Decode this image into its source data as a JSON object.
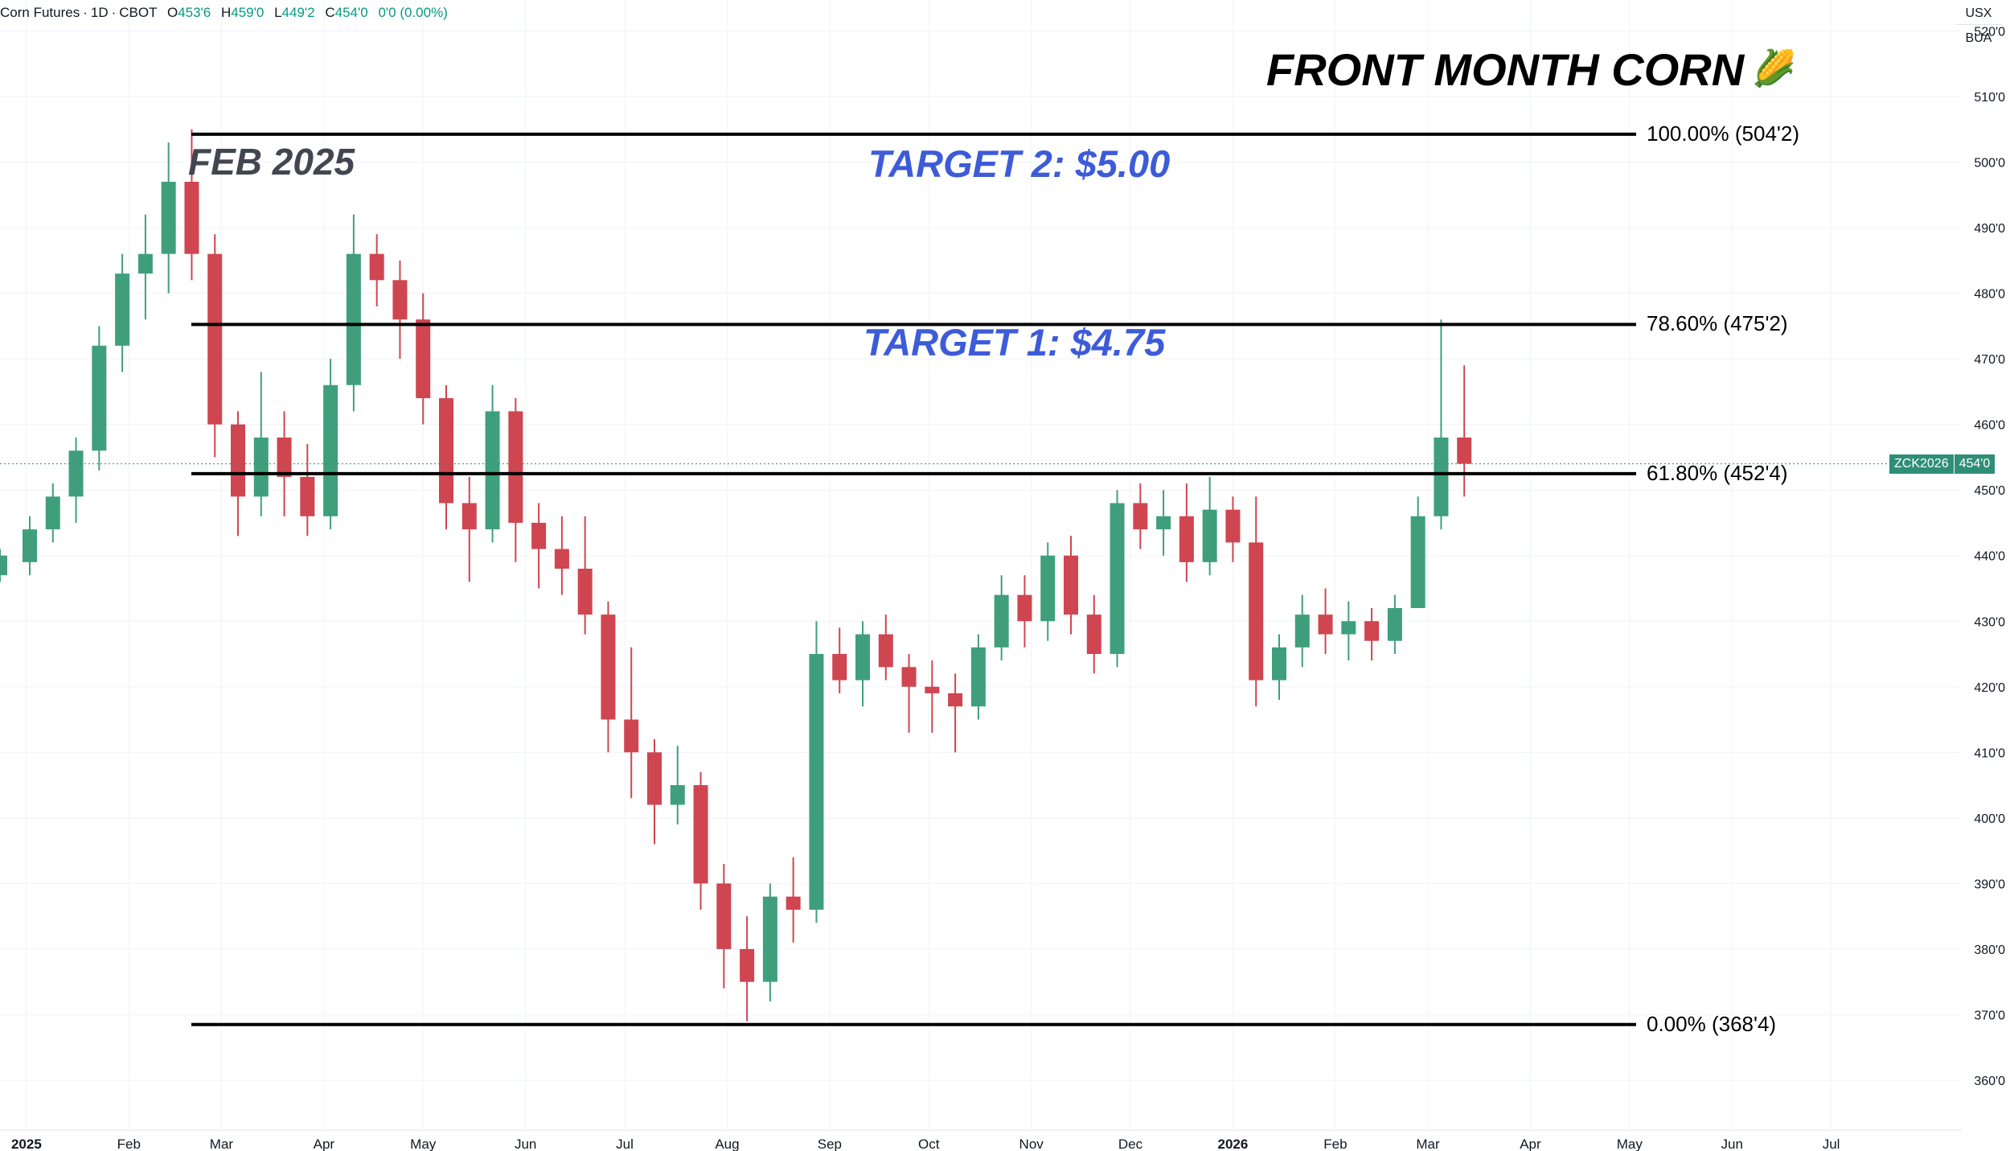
{
  "header": {
    "symbol": "Corn Futures",
    "interval": "1D",
    "exchange": "CBOT",
    "open_label": "O",
    "open": "453'6",
    "high_label": "H",
    "high": "459'0",
    "low_label": "L",
    "low": "449'2",
    "close_label": "C",
    "close": "454'0",
    "change": "0'0 (0.00%)"
  },
  "currency": {
    "unit": "USX",
    "unit2": "BUA"
  },
  "annotations": {
    "title": "FRONT MONTH CORN",
    "title_icon": "corn-icon",
    "feb_label": "FEB 2025",
    "target2": "TARGET 2: $5.00",
    "target1": "TARGET 1: $4.75"
  },
  "fib_levels": [
    {
      "label": "100.00% (504'2)",
      "price": 504.25
    },
    {
      "label": "78.60% (475'2)",
      "price": 475.25
    },
    {
      "label": "61.80% (452'4)",
      "price": 452.5
    },
    {
      "label": "0.00% (368'4)",
      "price": 368.5
    }
  ],
  "last_price_tag": {
    "symbol": "ZCK2026",
    "price": "454'0",
    "value": 454.0
  },
  "colors": {
    "up": "#3f9f7d",
    "down": "#cf4550",
    "grid": "#f0f3fa",
    "accent": "#3d5bd9",
    "price_tag": "#2f8f76"
  },
  "chart_data": {
    "type": "candlestick",
    "ylim": [
      355,
      525
    ],
    "y_ticks": [
      "360'0",
      "370'0",
      "380'0",
      "390'0",
      "400'0",
      "410'0",
      "420'0",
      "430'0",
      "440'0",
      "450'0",
      "460'0",
      "470'0",
      "480'0",
      "490'0",
      "500'0",
      "510'0",
      "520'0"
    ],
    "x_ticks": [
      "2025",
      "Feb",
      "Mar",
      "Apr",
      "May",
      "Jun",
      "Jul",
      "Aug",
      "Sep",
      "Oct",
      "Nov",
      "Dec",
      "2026",
      "Feb",
      "Mar",
      "Apr",
      "May",
      "Jun",
      "Jul"
    ],
    "x_range": [
      "2024-12-24",
      "2026-07-23"
    ],
    "grid": true,
    "series": [
      {
        "values": [
          [
            "2024-12-24",
            437,
            441,
            436,
            440
          ],
          [
            "2025-01-02",
            439,
            446,
            437,
            444
          ],
          [
            "2025-01-09",
            444,
            451,
            442,
            449
          ],
          [
            "2025-01-16",
            449,
            458,
            445,
            456
          ],
          [
            "2025-01-23",
            456,
            475,
            453,
            472
          ],
          [
            "2025-01-30",
            472,
            486,
            468,
            483
          ],
          [
            "2025-02-06",
            483,
            492,
            476,
            486
          ],
          [
            "2025-02-13",
            486,
            503,
            480,
            497
          ],
          [
            "2025-02-20",
            497,
            505,
            482,
            486
          ],
          [
            "2025-02-27",
            486,
            489,
            455,
            460
          ],
          [
            "2025-03-06",
            460,
            462,
            443,
            449
          ],
          [
            "2025-03-13",
            449,
            468,
            446,
            458
          ],
          [
            "2025-03-20",
            458,
            462,
            446,
            452
          ],
          [
            "2025-03-27",
            452,
            457,
            443,
            446
          ],
          [
            "2025-04-03",
            446,
            470,
            444,
            466
          ],
          [
            "2025-04-10",
            466,
            492,
            462,
            486
          ],
          [
            "2025-04-17",
            486,
            489,
            478,
            482
          ],
          [
            "2025-04-24",
            482,
            485,
            470,
            476
          ],
          [
            "2025-05-01",
            476,
            480,
            460,
            464
          ],
          [
            "2025-05-08",
            464,
            466,
            444,
            448
          ],
          [
            "2025-05-15",
            448,
            452,
            436,
            444
          ],
          [
            "2025-05-22",
            444,
            466,
            442,
            462
          ],
          [
            "2025-05-29",
            462,
            464,
            439,
            445
          ],
          [
            "2025-06-05",
            445,
            448,
            435,
            441
          ],
          [
            "2025-06-12",
            441,
            446,
            434,
            438
          ],
          [
            "2025-06-19",
            438,
            446,
            428,
            431
          ],
          [
            "2025-06-26",
            431,
            433,
            410,
            415
          ],
          [
            "2025-07-03",
            415,
            426,
            403,
            410
          ],
          [
            "2025-07-10",
            410,
            412,
            396,
            402
          ],
          [
            "2025-07-17",
            402,
            411,
            399,
            405
          ],
          [
            "2025-07-24",
            405,
            407,
            386,
            390
          ],
          [
            "2025-07-31",
            390,
            393,
            374,
            380
          ],
          [
            "2025-08-07",
            380,
            385,
            369,
            375
          ],
          [
            "2025-08-14",
            375,
            390,
            372,
            388
          ],
          [
            "2025-08-21",
            388,
            394,
            381,
            386
          ],
          [
            "2025-08-28",
            386,
            430,
            384,
            425
          ],
          [
            "2025-09-04",
            425,
            429,
            419,
            421
          ],
          [
            "2025-09-11",
            421,
            430,
            417,
            428
          ],
          [
            "2025-09-18",
            428,
            431,
            421,
            423
          ],
          [
            "2025-09-25",
            423,
            425,
            413,
            420
          ],
          [
            "2025-10-02",
            420,
            424,
            413,
            419
          ],
          [
            "2025-10-09",
            419,
            422,
            410,
            417
          ],
          [
            "2025-10-16",
            417,
            428,
            415,
            426
          ],
          [
            "2025-10-23",
            426,
            437,
            424,
            434
          ],
          [
            "2025-10-30",
            434,
            437,
            426,
            430
          ],
          [
            "2025-11-06",
            430,
            442,
            427,
            440
          ],
          [
            "2025-11-13",
            440,
            443,
            428,
            431
          ],
          [
            "2025-11-20",
            431,
            434,
            422,
            425
          ],
          [
            "2025-11-27",
            425,
            450,
            423,
            448
          ],
          [
            "2025-12-04",
            448,
            451,
            441,
            444
          ],
          [
            "2025-12-11",
            444,
            450,
            440,
            446
          ],
          [
            "2025-12-18",
            446,
            451,
            436,
            439
          ],
          [
            "2025-12-25",
            439,
            452,
            437,
            447
          ],
          [
            "2026-01-01",
            447,
            449,
            439,
            442
          ],
          [
            "2026-01-08",
            442,
            449,
            417,
            421
          ],
          [
            "2026-01-15",
            421,
            428,
            418,
            426
          ],
          [
            "2026-01-22",
            426,
            434,
            423,
            431
          ],
          [
            "2026-01-29",
            431,
            435,
            425,
            428
          ],
          [
            "2026-02-05",
            428,
            433,
            424,
            430
          ],
          [
            "2026-02-12",
            430,
            432,
            424,
            427
          ],
          [
            "2026-02-19",
            427,
            434,
            425,
            432
          ],
          [
            "2026-02-26",
            432,
            449,
            440,
            446
          ],
          [
            "2026-03-05",
            446,
            476,
            444,
            458
          ],
          [
            "2026-03-12",
            458,
            469,
            449,
            454
          ]
        ]
      }
    ]
  }
}
